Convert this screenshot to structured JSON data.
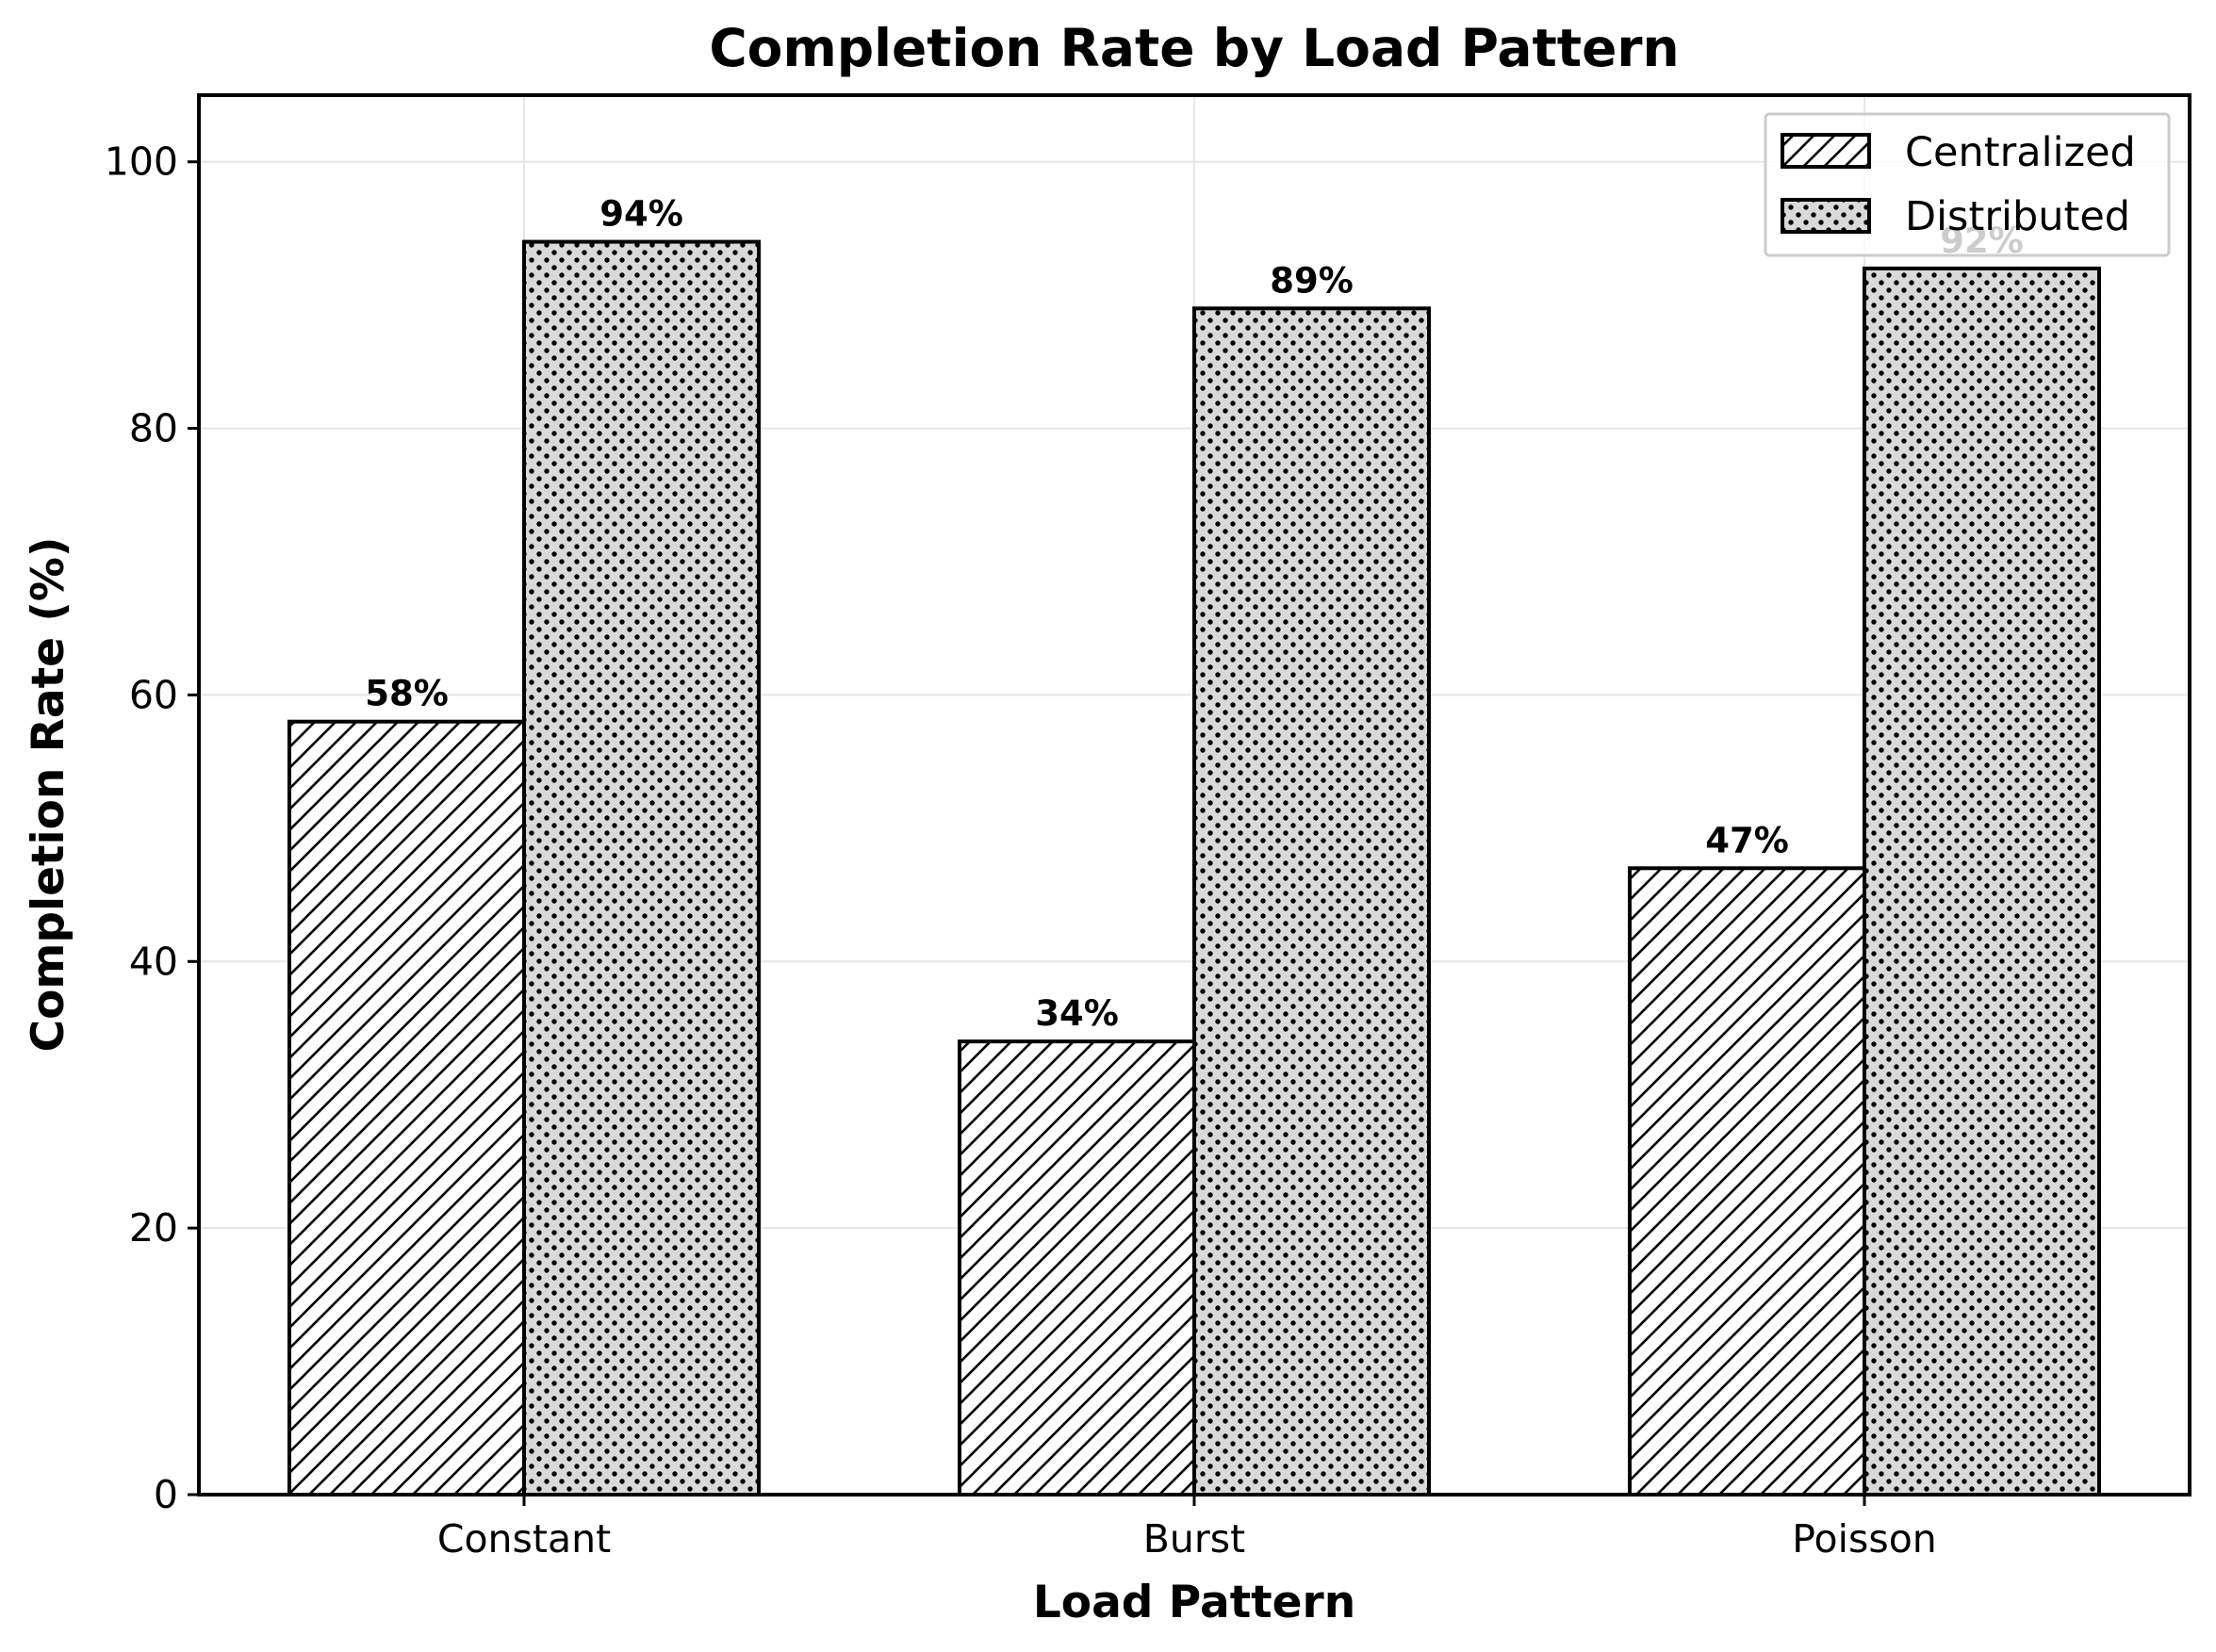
{
  "chart_data": {
    "type": "bar",
    "title": "Completion Rate by Load Pattern",
    "xlabel": "Load Pattern",
    "ylabel": "Completion Rate (%)",
    "categories": [
      "Constant",
      "Burst",
      "Poisson"
    ],
    "series": [
      {
        "name": "Centralized",
        "values": [
          58,
          34,
          47
        ],
        "labels": [
          "58%",
          "34%",
          "47%"
        ],
        "pattern": "diagonal-hatch",
        "color": "#ffffff"
      },
      {
        "name": "Distributed",
        "values": [
          94,
          89,
          92
        ],
        "labels": [
          "94%",
          "89%",
          "92%"
        ],
        "pattern": "dots",
        "color": "#d9d9d9"
      }
    ],
    "ylim": [
      0,
      105
    ],
    "yticks": [
      "0",
      "20",
      "40",
      "60",
      "80",
      "100"
    ],
    "grid": true,
    "legend_position": "top-right"
  }
}
